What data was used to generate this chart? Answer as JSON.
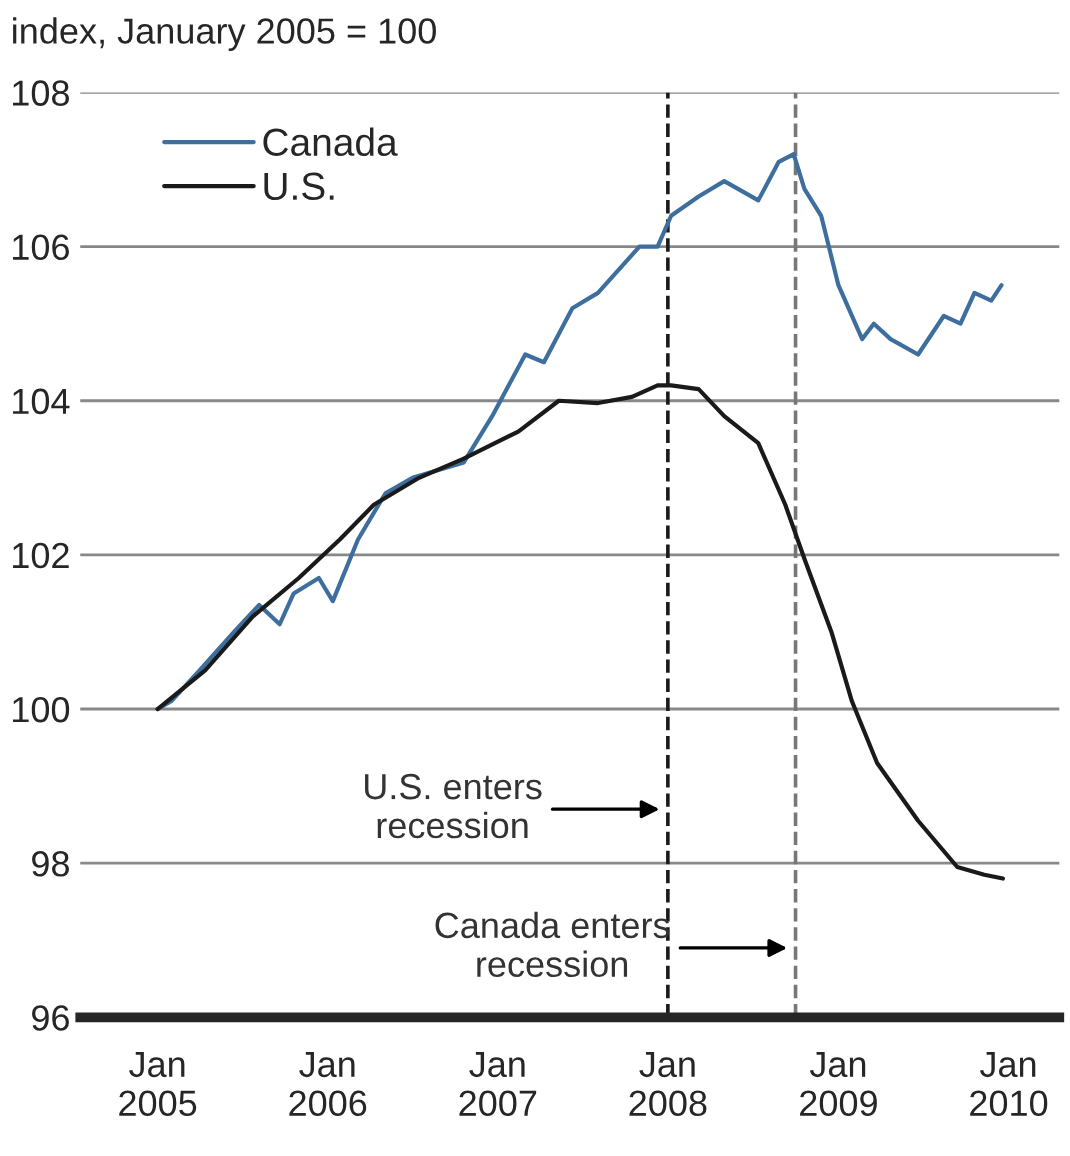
{
  "chart_data": {
    "type": "line",
    "ylabel": "index, January 2005 = 100",
    "series": [
      {
        "name": "Canada",
        "color": "#3d6e9e",
        "x": [
          "2005-01-01",
          "2005-01-30",
          "2005-04-01",
          "2005-06-14",
          "2005-08-07",
          "2005-09-20",
          "2005-10-20",
          "2005-12-13",
          "2006-01-12",
          "2006-03-07",
          "2006-05-05",
          "2006-07-02",
          "2006-10-20",
          "2006-12-20",
          "2007-03-01",
          "2007-04-10",
          "2007-06-10",
          "2007-08-04",
          "2007-11-01",
          "2007-12-10",
          "2008-01-08",
          "2008-03-07",
          "2008-05-01",
          "2008-07-13",
          "2008-08-26",
          "2008-09-27",
          "2008-10-20",
          "2008-11-25",
          "2009-01-01",
          "2009-02-21",
          "2009-03-18",
          "2009-04-23",
          "2009-06-21",
          "2009-08-15",
          "2009-09-20",
          "2009-10-20",
          "2009-11-25",
          "2009-12-17"
        ],
        "values": [
          100.0,
          100.1,
          100.5,
          101.0,
          101.35,
          101.1,
          101.5,
          101.7,
          101.4,
          102.2,
          102.8,
          103.0,
          103.2,
          103.8,
          104.6,
          104.5,
          105.2,
          105.4,
          106.0,
          106.0,
          106.4,
          106.65,
          106.85,
          106.6,
          107.1,
          107.2,
          106.75,
          106.4,
          105.5,
          104.8,
          105.0,
          104.8,
          104.6,
          105.1,
          105.0,
          105.4,
          105.3,
          105.5
        ]
      },
      {
        "name": "U.S.",
        "color": "#1a1a1a",
        "x": [
          "2005-01-01",
          "2005-04-13",
          "2005-07-24",
          "2005-10-31",
          "2006-01-27",
          "2006-04-10",
          "2006-07-16",
          "2006-10-20",
          "2007-02-14",
          "2007-05-12",
          "2007-08-04",
          "2007-10-16",
          "2007-12-10",
          "2008-01-08",
          "2008-03-07",
          "2008-05-01",
          "2008-07-13",
          "2008-09-09",
          "2008-10-20",
          "2008-12-17",
          "2009-01-30",
          "2009-03-25",
          "2009-06-21",
          "2009-09-13",
          "2009-11-10",
          "2009-12-20"
        ],
        "values": [
          100.0,
          100.5,
          101.2,
          101.7,
          102.2,
          102.65,
          103.0,
          103.25,
          103.6,
          104.0,
          103.97,
          104.05,
          104.2,
          104.2,
          104.15,
          103.8,
          103.45,
          102.65,
          101.95,
          101.0,
          100.1,
          99.3,
          98.55,
          97.95,
          97.85,
          97.8
        ]
      }
    ],
    "xlim": [
      "2004-07-19",
      "2010-04-20"
    ],
    "xticks": [
      {
        "value": "2005-01-01",
        "label": "Jan\n2005"
      },
      {
        "value": "2006-01-01",
        "label": "Jan\n2006"
      },
      {
        "value": "2007-01-01",
        "label": "Jan\n2007"
      },
      {
        "value": "2008-01-01",
        "label": "Jan\n2008"
      },
      {
        "value": "2009-01-01",
        "label": "Jan\n2009"
      },
      {
        "value": "2010-01-01",
        "label": "Jan\n2010"
      }
    ],
    "ylim": [
      96,
      108
    ],
    "yticks": [
      96,
      98,
      100,
      102,
      104,
      106,
      108
    ],
    "grid": "y",
    "legend": "top left",
    "line_style": "solid",
    "ref_lines": [
      {
        "axis": "x",
        "value": "2008-01-01",
        "color": "#1a1a1a",
        "line_style": "dashed",
        "label": "U.S. enters\nrecession"
      },
      {
        "axis": "x",
        "value": "2008-10-01",
        "color": "#777777",
        "line_style": "dashed",
        "label": "Canada enters\nrecession"
      }
    ]
  }
}
